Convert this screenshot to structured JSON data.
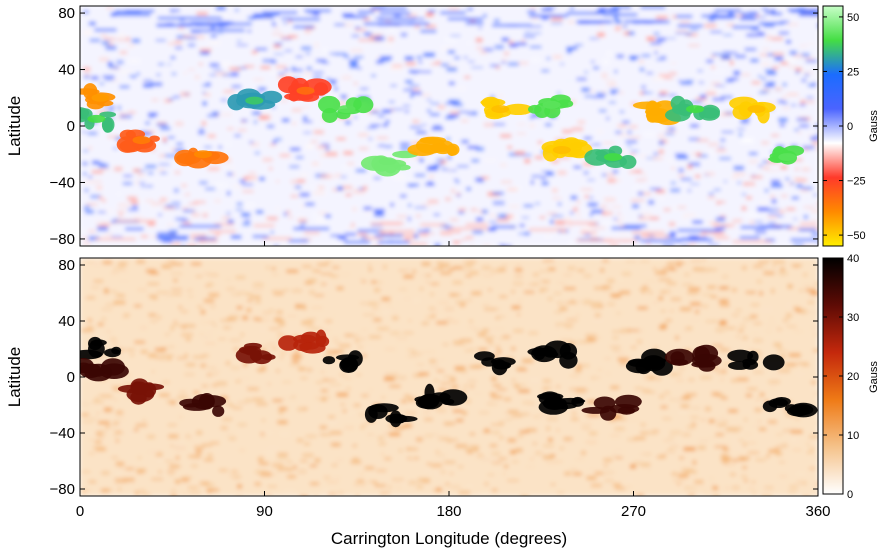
{
  "chart_data": [
    {
      "type": "heatmap",
      "panel": "top",
      "xlim": [
        0,
        360
      ],
      "ylim": [
        -85,
        85
      ],
      "y_ticks": [
        "80",
        "40",
        "0",
        "−40",
        "−80"
      ],
      "y_tick_values": [
        80,
        40,
        0,
        -40,
        -80
      ],
      "ylabel": "Latitude",
      "colorbar": {
        "label": "Gauss",
        "range": [
          -55,
          55
        ],
        "ticks": [
          "50",
          "25",
          "0",
          "−25",
          "−50"
        ],
        "tick_values": [
          50,
          25,
          0,
          -25,
          -50
        ],
        "colormap": [
          "#ffee00",
          "#ff8a00",
          "#ff3a2a",
          "#ffffff",
          "#4b64ff",
          "#1b6cff",
          "#44dd44",
          "#c8ffc8"
        ]
      },
      "features": [
        {
          "lon": 10,
          "lat": 20,
          "value": -40
        },
        {
          "lon": 8,
          "lat": 5,
          "value": 35
        },
        {
          "lon": 30,
          "lat": -10,
          "value": -30
        },
        {
          "lon": 60,
          "lat": -20,
          "value": -35
        },
        {
          "lon": 85,
          "lat": 18,
          "value": 30
        },
        {
          "lon": 110,
          "lat": 25,
          "value": -25
        },
        {
          "lon": 130,
          "lat": 12,
          "value": 40
        },
        {
          "lon": 150,
          "lat": -25,
          "value": 45
        },
        {
          "lon": 175,
          "lat": -15,
          "value": -45
        },
        {
          "lon": 205,
          "lat": 12,
          "value": -50
        },
        {
          "lon": 230,
          "lat": 15,
          "value": 40
        },
        {
          "lon": 235,
          "lat": -17,
          "value": -50
        },
        {
          "lon": 260,
          "lat": -22,
          "value": 35
        },
        {
          "lon": 280,
          "lat": 10,
          "value": -45
        },
        {
          "lon": 300,
          "lat": 12,
          "value": 35
        },
        {
          "lon": 330,
          "lat": 12,
          "value": -50
        },
        {
          "lon": 345,
          "lat": -22,
          "value": 40
        }
      ]
    },
    {
      "type": "heatmap",
      "panel": "bottom",
      "xlim": [
        0,
        360
      ],
      "ylim": [
        -85,
        85
      ],
      "x_ticks": [
        "0",
        "90",
        "180",
        "270",
        "360"
      ],
      "x_tick_values": [
        0,
        90,
        180,
        270,
        360
      ],
      "y_ticks": [
        "80",
        "40",
        "0",
        "−40",
        "−80"
      ],
      "y_tick_values": [
        80,
        40,
        0,
        -40,
        -80
      ],
      "xlabel": "Carrington Longitude (degrees)",
      "ylabel": "Latitude",
      "colorbar": {
        "label": "Gauss",
        "range": [
          0,
          40
        ],
        "ticks": [
          "40",
          "30",
          "20",
          "10",
          "0"
        ],
        "tick_values": [
          40,
          30,
          20,
          10,
          0
        ],
        "colormap": [
          "#ffffff",
          "#f5c28a",
          "#ef7a16",
          "#c4280c",
          "#5e0b05",
          "#000000"
        ]
      },
      "features": [
        {
          "lon": 10,
          "lat": 20,
          "value": 40
        },
        {
          "lon": 8,
          "lat": 5,
          "value": 35
        },
        {
          "lon": 30,
          "lat": -10,
          "value": 30
        },
        {
          "lon": 60,
          "lat": -20,
          "value": 35
        },
        {
          "lon": 85,
          "lat": 18,
          "value": 30
        },
        {
          "lon": 110,
          "lat": 25,
          "value": 25
        },
        {
          "lon": 130,
          "lat": 12,
          "value": 40
        },
        {
          "lon": 150,
          "lat": -25,
          "value": 40
        },
        {
          "lon": 175,
          "lat": -15,
          "value": 40
        },
        {
          "lon": 205,
          "lat": 12,
          "value": 40
        },
        {
          "lon": 230,
          "lat": 15,
          "value": 40
        },
        {
          "lon": 235,
          "lat": -17,
          "value": 40
        },
        {
          "lon": 260,
          "lat": -22,
          "value": 35
        },
        {
          "lon": 280,
          "lat": 10,
          "value": 40
        },
        {
          "lon": 300,
          "lat": 12,
          "value": 35
        },
        {
          "lon": 330,
          "lat": 12,
          "value": 40
        },
        {
          "lon": 345,
          "lat": -22,
          "value": 40
        }
      ]
    }
  ]
}
